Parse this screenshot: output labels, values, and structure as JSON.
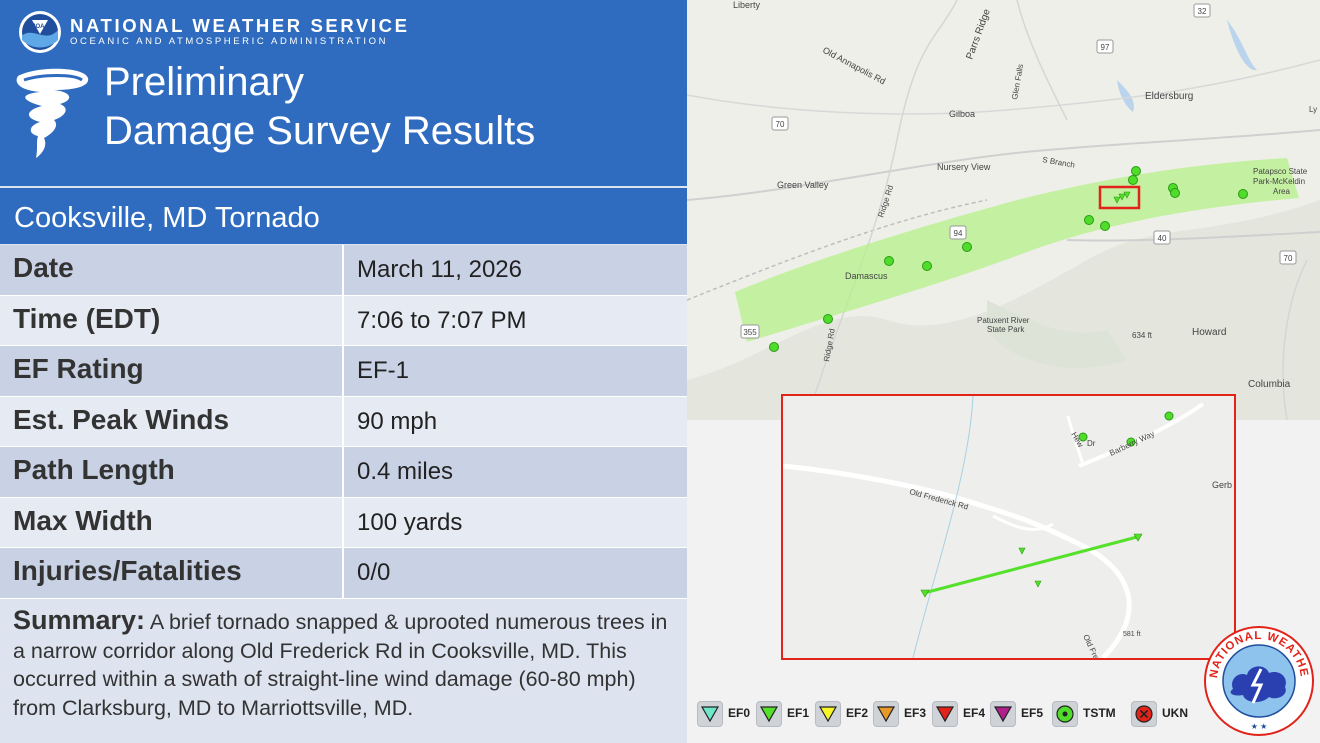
{
  "header": {
    "org_name": "NATIONAL WEATHER SERVICE",
    "org_sub": "OCEANIC AND ATMOSPHERIC ADMINISTRATION",
    "logo_text": "NOAA",
    "title_line1": "Preliminary",
    "title_line2": "Damage Survey Results",
    "subtitle": "Cooksville, MD Tornado",
    "colors": {
      "header_bg": "#2f6cc0",
      "row_dark": "#c9d2e5",
      "row_light": "#e6eaf3"
    }
  },
  "rows": [
    {
      "label": "Date",
      "value": "March 11, 2026"
    },
    {
      "label": "Time (EDT)",
      "value": "7:06 to 7:07 PM"
    },
    {
      "label": "EF Rating",
      "value": "EF-1"
    },
    {
      "label": "Est. Peak Winds",
      "value": "90 mph"
    },
    {
      "label": "Path Length",
      "value": "0.4 miles"
    },
    {
      "label": "Max Width",
      "value": "100 yards"
    },
    {
      "label": "Injuries/Fatalities",
      "value": "0/0"
    }
  ],
  "summary": {
    "label": "Summary:",
    "text": " A brief tornado snapped & uprooted numerous trees in a narrow corridor along Old Frederick Rd in Cooksville, MD. This occurred within a swath of straight-line wind damage (60-80 mph) from Clarksburg, MD to Marriottsville, MD."
  },
  "map": {
    "labels": {
      "liberty": "Liberty",
      "r32": "32",
      "r97": "97",
      "old_annapolis": "Old Annapolis Rd",
      "parrs_ridge": "Parrs Ridge",
      "glen_falls": "Glen Falls",
      "eldersburg": "Eldersburg",
      "r70a": "70",
      "gilboa": "Gilboa",
      "nursery_view": "Nursery View",
      "s_branch": "S Branch",
      "patapsco": "Patapsco State",
      "mckeldin": "Park-McKeldin",
      "area": "Area",
      "green_valley": "Green Valley",
      "ridge_rd": "Ridge Rd",
      "r94": "94",
      "r40": "40",
      "r70b": "70",
      "damascus": "Damascus",
      "patuxent": "Patuxent River",
      "state_park": "State Park",
      "ft634": "634 ft",
      "howard": "Howard",
      "r355": "355",
      "ridge_rd2": "Ridge Rd",
      "columbia": "Columbia",
      "ly": "Ly"
    },
    "swath_color": "#b6f08a",
    "report_color": "#4fdc2a",
    "highlight_color": "#e2231a"
  },
  "inset": {
    "labels": {
      "hew": "Hew",
      "dr": "Dr",
      "barberry": "Barberry Way",
      "gerb": "Gerb",
      "old_frederick": "Old Frederick Rd",
      "ft581": "581 ft",
      "old_fred2": "Old Fred"
    },
    "track_color": "#55e02a"
  },
  "legend": [
    {
      "label": "EF0",
      "color": "#6fe6c8",
      "icon": "triangle-down-icon"
    },
    {
      "label": "EF1",
      "color": "#55e02a",
      "icon": "triangle-down-icon"
    },
    {
      "label": "EF2",
      "color": "#f5f52a",
      "icon": "triangle-down-icon"
    },
    {
      "label": "EF3",
      "color": "#e79a2a",
      "icon": "triangle-down-icon"
    },
    {
      "label": "EF4",
      "color": "#e2231a",
      "icon": "triangle-down-icon"
    },
    {
      "label": "EF5",
      "color": "#b0208c",
      "icon": "triangle-down-icon"
    },
    {
      "label": "TSTM",
      "color": "#4fdc2a",
      "icon": "circle-dot-icon"
    },
    {
      "label": "UKN",
      "color": "#e2231a",
      "icon": "x-circle-icon"
    }
  ],
  "seal": {
    "text": "NATIONAL WEATHER SERVICE"
  }
}
